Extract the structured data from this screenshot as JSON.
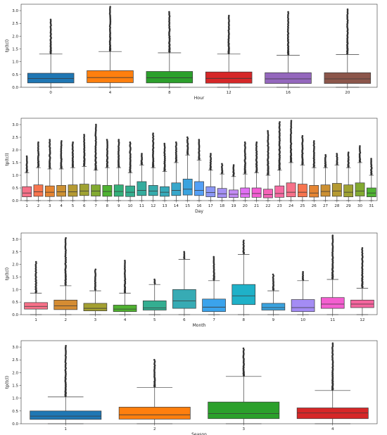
{
  "chart_data": [
    {
      "type": "box",
      "xlabel": "Hour",
      "ylabel": "tp(tcl)",
      "ylim": [
        0,
        3.25
      ],
      "yticks": [
        0.0,
        0.5,
        1.0,
        1.5,
        2.0,
        2.5,
        3.0
      ],
      "categories": [
        "0",
        "4",
        "8",
        "12",
        "16",
        "20"
      ],
      "colors": [
        "#1f77b4",
        "#ff7f0e",
        "#2ca02c",
        "#d62728",
        "#9467bd",
        "#8c564b"
      ],
      "boxes": [
        {
          "q1": 0.17,
          "median": 0.34,
          "q3": 0.55,
          "wlo": 0.0,
          "whi": 1.3,
          "outmax": 2.65
        },
        {
          "q1": 0.18,
          "median": 0.38,
          "q3": 0.65,
          "wlo": 0.0,
          "whi": 1.4,
          "outmax": 3.15
        },
        {
          "q1": 0.17,
          "median": 0.37,
          "q3": 0.62,
          "wlo": 0.0,
          "whi": 1.35,
          "outmax": 2.95
        },
        {
          "q1": 0.16,
          "median": 0.35,
          "q3": 0.6,
          "wlo": 0.0,
          "whi": 1.3,
          "outmax": 2.8
        },
        {
          "q1": 0.15,
          "median": 0.33,
          "q3": 0.57,
          "wlo": 0.0,
          "whi": 1.25,
          "outmax": 2.95
        },
        {
          "q1": 0.15,
          "median": 0.33,
          "q3": 0.57,
          "wlo": 0.0,
          "whi": 1.28,
          "outmax": 3.05
        }
      ]
    },
    {
      "type": "box",
      "xlabel": "Day",
      "ylabel": "tp(tcl)",
      "ylim": [
        0,
        3.25
      ],
      "yticks": [
        0.0,
        0.5,
        1.0,
        1.5,
        2.0,
        2.5,
        3.0
      ],
      "categories": [
        "1",
        "2",
        "3",
        "4",
        "5",
        "6",
        "7",
        "8",
        "9",
        "10",
        "11",
        "12",
        "13",
        "14",
        "15",
        "16",
        "17",
        "18",
        "19",
        "20",
        "21",
        "22",
        "23",
        "24",
        "25",
        "26",
        "27",
        "28",
        "29",
        "30",
        "31"
      ],
      "colors": [
        "#f77189",
        "#f7754f",
        "#e58532",
        "#cc9032",
        "#b59a32",
        "#9fa232",
        "#82aa31",
        "#4fb332",
        "#33b07a",
        "#34ae8f",
        "#35ac9e",
        "#36abac",
        "#37aaba",
        "#38a7cb",
        "#3aa3df",
        "#54a0f6",
        "#8b97f4",
        "#a590f4",
        "#c38af4",
        "#e16ff4",
        "#f45dd4",
        "#f564b8",
        "#f66ba2",
        "#f77189",
        "#f7754f",
        "#e58532",
        "#cc9032",
        "#b59a32",
        "#9fa232",
        "#82aa31",
        "#4fb332"
      ],
      "boxes": [
        {
          "q1": 0.15,
          "median": 0.3,
          "q3": 0.55,
          "wlo": 0.0,
          "whi": 1.1,
          "outmax": 1.75
        },
        {
          "q1": 0.17,
          "median": 0.35,
          "q3": 0.62,
          "wlo": 0.0,
          "whi": 1.3,
          "outmax": 2.3
        },
        {
          "q1": 0.16,
          "median": 0.33,
          "q3": 0.58,
          "wlo": 0.0,
          "whi": 1.25,
          "outmax": 2.4
        },
        {
          "q1": 0.17,
          "median": 0.35,
          "q3": 0.6,
          "wlo": 0.0,
          "whi": 1.25,
          "outmax": 2.35
        },
        {
          "q1": 0.17,
          "median": 0.35,
          "q3": 0.62,
          "wlo": 0.0,
          "whi": 1.3,
          "outmax": 2.3
        },
        {
          "q1": 0.2,
          "median": 0.38,
          "q3": 0.65,
          "wlo": 0.0,
          "whi": 1.35,
          "outmax": 2.6
        },
        {
          "q1": 0.18,
          "median": 0.38,
          "q3": 0.62,
          "wlo": 0.0,
          "whi": 1.2,
          "outmax": 3.0
        },
        {
          "q1": 0.17,
          "median": 0.36,
          "q3": 0.6,
          "wlo": 0.0,
          "whi": 1.3,
          "outmax": 2.4
        },
        {
          "q1": 0.17,
          "median": 0.36,
          "q3": 0.62,
          "wlo": 0.0,
          "whi": 1.3,
          "outmax": 2.4
        },
        {
          "q1": 0.16,
          "median": 0.33,
          "q3": 0.58,
          "wlo": 0.0,
          "whi": 1.1,
          "outmax": 2.3
        },
        {
          "q1": 0.2,
          "median": 0.4,
          "q3": 0.75,
          "wlo": 0.0,
          "whi": 1.4,
          "outmax": 1.85
        },
        {
          "q1": 0.2,
          "median": 0.38,
          "q3": 0.6,
          "wlo": 0.0,
          "whi": 1.3,
          "outmax": 2.65
        },
        {
          "q1": 0.17,
          "median": 0.33,
          "q3": 0.55,
          "wlo": 0.0,
          "whi": 1.15,
          "outmax": 2.25
        },
        {
          "q1": 0.2,
          "median": 0.4,
          "q3": 0.7,
          "wlo": 0.0,
          "whi": 1.5,
          "outmax": 2.3
        },
        {
          "q1": 0.22,
          "median": 0.45,
          "q3": 0.85,
          "wlo": 0.0,
          "whi": 1.8,
          "outmax": 2.5
        },
        {
          "q1": 0.2,
          "median": 0.4,
          "q3": 0.75,
          "wlo": 0.0,
          "whi": 1.6,
          "outmax": 2.4
        },
        {
          "q1": 0.15,
          "median": 0.32,
          "q3": 0.55,
          "wlo": 0.0,
          "whi": 1.2,
          "outmax": 1.85
        },
        {
          "q1": 0.12,
          "median": 0.27,
          "q3": 0.48,
          "wlo": 0.0,
          "whi": 1.05,
          "outmax": 1.45
        },
        {
          "q1": 0.12,
          "median": 0.25,
          "q3": 0.42,
          "wlo": 0.0,
          "whi": 0.95,
          "outmax": 1.4
        },
        {
          "q1": 0.13,
          "median": 0.27,
          "q3": 0.5,
          "wlo": 0.0,
          "whi": 1.05,
          "outmax": 2.3
        },
        {
          "q1": 0.13,
          "median": 0.28,
          "q3": 0.5,
          "wlo": 0.0,
          "whi": 1.1,
          "outmax": 2.3
        },
        {
          "q1": 0.11,
          "median": 0.24,
          "q3": 0.45,
          "wlo": 0.0,
          "whi": 1.0,
          "outmax": 2.75
        },
        {
          "q1": 0.13,
          "median": 0.28,
          "q3": 0.58,
          "wlo": 0.0,
          "whi": 1.2,
          "outmax": 3.1
        },
        {
          "q1": 0.15,
          "median": 0.33,
          "q3": 0.7,
          "wlo": 0.0,
          "whi": 1.5,
          "outmax": 3.15
        },
        {
          "q1": 0.15,
          "median": 0.33,
          "q3": 0.65,
          "wlo": 0.0,
          "whi": 1.4,
          "outmax": 2.55
        },
        {
          "q1": 0.14,
          "median": 0.3,
          "q3": 0.6,
          "wlo": 0.0,
          "whi": 1.3,
          "outmax": 2.35
        },
        {
          "q1": 0.17,
          "median": 0.36,
          "q3": 0.62,
          "wlo": 0.0,
          "whi": 1.3,
          "outmax": 1.8
        },
        {
          "q1": 0.17,
          "median": 0.38,
          "q3": 0.68,
          "wlo": 0.0,
          "whi": 1.4,
          "outmax": 1.85
        },
        {
          "q1": 0.15,
          "median": 0.33,
          "q3": 0.62,
          "wlo": 0.0,
          "whi": 1.3,
          "outmax": 1.9
        },
        {
          "q1": 0.18,
          "median": 0.38,
          "q3": 0.7,
          "wlo": 0.0,
          "whi": 1.5,
          "outmax": 2.15
        },
        {
          "q1": 0.15,
          "median": 0.3,
          "q3": 0.5,
          "wlo": 0.0,
          "whi": 1.0,
          "outmax": 1.65
        }
      ]
    },
    {
      "type": "box",
      "xlabel": "Month",
      "ylabel": "tp(tcl)",
      "ylim": [
        0,
        3.25
      ],
      "yticks": [
        0.0,
        0.5,
        1.0,
        1.5,
        2.0,
        2.5,
        3.0
      ],
      "categories": [
        "1",
        "2",
        "3",
        "4",
        "5",
        "6",
        "7",
        "8",
        "9",
        "10",
        "11",
        "12"
      ],
      "colors": [
        "#f77189",
        "#d58c32",
        "#a4a031",
        "#50b131",
        "#34ae91",
        "#37abb4",
        "#3ba3ec",
        "#1fb1c8",
        "#3aa3df",
        "#a48cf4",
        "#f45fd0",
        "#f5659e"
      ],
      "boxes": [
        {
          "q1": 0.22,
          "median": 0.33,
          "q3": 0.48,
          "wlo": 0.0,
          "whi": 0.85,
          "outmax": 2.1
        },
        {
          "q1": 0.2,
          "median": 0.35,
          "q3": 0.58,
          "wlo": 0.0,
          "whi": 1.15,
          "outmax": 3.05
        },
        {
          "q1": 0.15,
          "median": 0.25,
          "q3": 0.45,
          "wlo": 0.0,
          "whi": 0.95,
          "outmax": 1.8
        },
        {
          "q1": 0.12,
          "median": 0.22,
          "q3": 0.38,
          "wlo": 0.0,
          "whi": 0.85,
          "outmax": 2.15
        },
        {
          "q1": 0.18,
          "median": 0.27,
          "q3": 0.55,
          "wlo": 0.0,
          "whi": 1.2,
          "outmax": 1.4
        },
        {
          "q1": 0.25,
          "median": 0.55,
          "q3": 1.0,
          "wlo": 0.0,
          "whi": 2.2,
          "outmax": 2.5
        },
        {
          "q1": 0.12,
          "median": 0.3,
          "q3": 0.62,
          "wlo": 0.0,
          "whi": 1.35,
          "outmax": 2.3
        },
        {
          "q1": 0.4,
          "median": 0.75,
          "q3": 1.2,
          "wlo": 0.0,
          "whi": 2.4,
          "outmax": 2.95
        },
        {
          "q1": 0.18,
          "median": 0.28,
          "q3": 0.45,
          "wlo": 0.0,
          "whi": 0.95,
          "outmax": 1.6
        },
        {
          "q1": 0.12,
          "median": 0.28,
          "q3": 0.6,
          "wlo": 0.0,
          "whi": 1.35,
          "outmax": 1.7
        },
        {
          "q1": 0.25,
          "median": 0.42,
          "q3": 0.68,
          "wlo": 0.0,
          "whi": 1.4,
          "outmax": 3.15
        },
        {
          "q1": 0.28,
          "median": 0.42,
          "q3": 0.58,
          "wlo": 0.0,
          "whi": 1.05,
          "outmax": 2.65
        }
      ]
    },
    {
      "type": "box",
      "xlabel": "Season",
      "ylabel": "tp(tcl)",
      "ylim": [
        0,
        3.25
      ],
      "yticks": [
        0.0,
        0.5,
        1.0,
        1.5,
        2.0,
        2.5,
        3.0
      ],
      "categories": [
        "1",
        "2",
        "3",
        "4"
      ],
      "colors": [
        "#1f77b4",
        "#ff7f0e",
        "#2ca02c",
        "#d62728"
      ],
      "boxes": [
        {
          "q1": 0.17,
          "median": 0.3,
          "q3": 0.5,
          "wlo": 0.0,
          "whi": 1.05,
          "outmax": 3.05
        },
        {
          "q1": 0.18,
          "median": 0.35,
          "q3": 0.65,
          "wlo": 0.0,
          "whi": 1.42,
          "outmax": 2.5
        },
        {
          "q1": 0.2,
          "median": 0.4,
          "q3": 0.85,
          "wlo": 0.0,
          "whi": 1.85,
          "outmax": 2.95
        },
        {
          "q1": 0.2,
          "median": 0.42,
          "q3": 0.62,
          "wlo": 0.0,
          "whi": 1.3,
          "outmax": 3.15
        }
      ]
    }
  ]
}
